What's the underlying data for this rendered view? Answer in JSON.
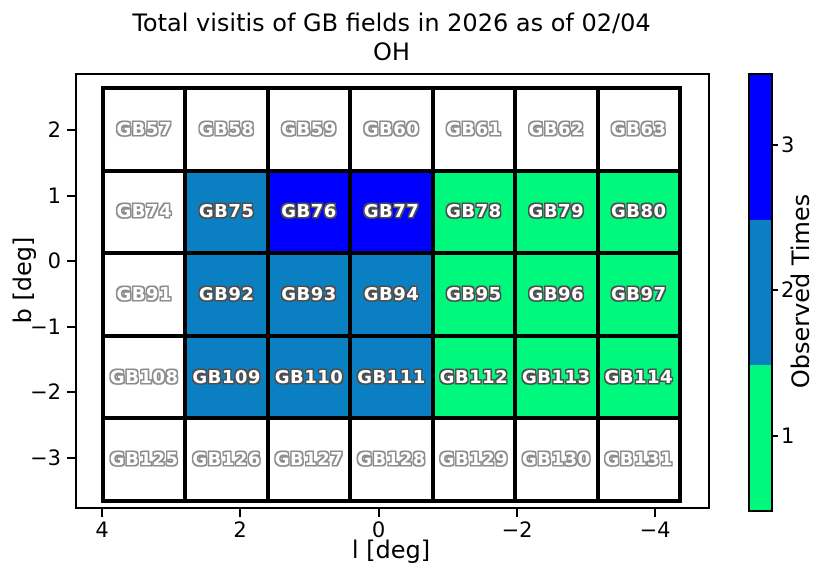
{
  "chart_data": {
    "type": "heatmap",
    "title": "Total visitis of GB fields in 2026 as of 02/04",
    "subtitle": "OH",
    "xlabel": "l [deg]",
    "ylabel": "b [deg]",
    "x_ticks": [
      "4",
      "2",
      "0",
      "−2",
      "−4"
    ],
    "y_ticks": [
      "2",
      "1",
      "0",
      "−1",
      "−2",
      "−3"
    ],
    "x_range": [
      4.4,
      -4.8
    ],
    "y_range": [
      2.9,
      -3.7
    ],
    "grid_on": false,
    "colorbar": {
      "label": "Observed Times",
      "ticks": [
        "3",
        "2",
        "1"
      ],
      "segment_colors_top_to_bottom": [
        "#0000ff",
        "#0a80c2",
        "#00f97d"
      ]
    },
    "value_colors": {
      "0": "#ffffff",
      "1": "#00f97d",
      "2": "#0a80c2",
      "3": "#0000ff"
    },
    "grid": [
      [
        {
          "name": "GB57",
          "count": 0
        },
        {
          "name": "GB58",
          "count": 0
        },
        {
          "name": "GB59",
          "count": 0
        },
        {
          "name": "GB60",
          "count": 0
        },
        {
          "name": "GB61",
          "count": 0
        },
        {
          "name": "GB62",
          "count": 0
        },
        {
          "name": "GB63",
          "count": 0
        }
      ],
      [
        {
          "name": "GB74",
          "count": 0
        },
        {
          "name": "GB75",
          "count": 2
        },
        {
          "name": "GB76",
          "count": 3
        },
        {
          "name": "GB77",
          "count": 3
        },
        {
          "name": "GB78",
          "count": 1
        },
        {
          "name": "GB79",
          "count": 1
        },
        {
          "name": "GB80",
          "count": 1
        }
      ],
      [
        {
          "name": "GB91",
          "count": 0
        },
        {
          "name": "GB92",
          "count": 2
        },
        {
          "name": "GB93",
          "count": 2
        },
        {
          "name": "GB94",
          "count": 2
        },
        {
          "name": "GB95",
          "count": 1
        },
        {
          "name": "GB96",
          "count": 1
        },
        {
          "name": "GB97",
          "count": 1
        }
      ],
      [
        {
          "name": "GB108",
          "count": 0
        },
        {
          "name": "GB109",
          "count": 2
        },
        {
          "name": "GB110",
          "count": 2
        },
        {
          "name": "GB111",
          "count": 2
        },
        {
          "name": "GB112",
          "count": 1
        },
        {
          "name": "GB113",
          "count": 1
        },
        {
          "name": "GB114",
          "count": 1
        }
      ],
      [
        {
          "name": "GB125",
          "count": 0
        },
        {
          "name": "GB126",
          "count": 0
        },
        {
          "name": "GB127",
          "count": 0
        },
        {
          "name": "GB128",
          "count": 0
        },
        {
          "name": "GB129",
          "count": 0
        },
        {
          "name": "GB130",
          "count": 0
        },
        {
          "name": "GB131",
          "count": 0
        }
      ]
    ]
  },
  "layout_labels": {
    "figure_name": "gb-field-visits-chart"
  }
}
